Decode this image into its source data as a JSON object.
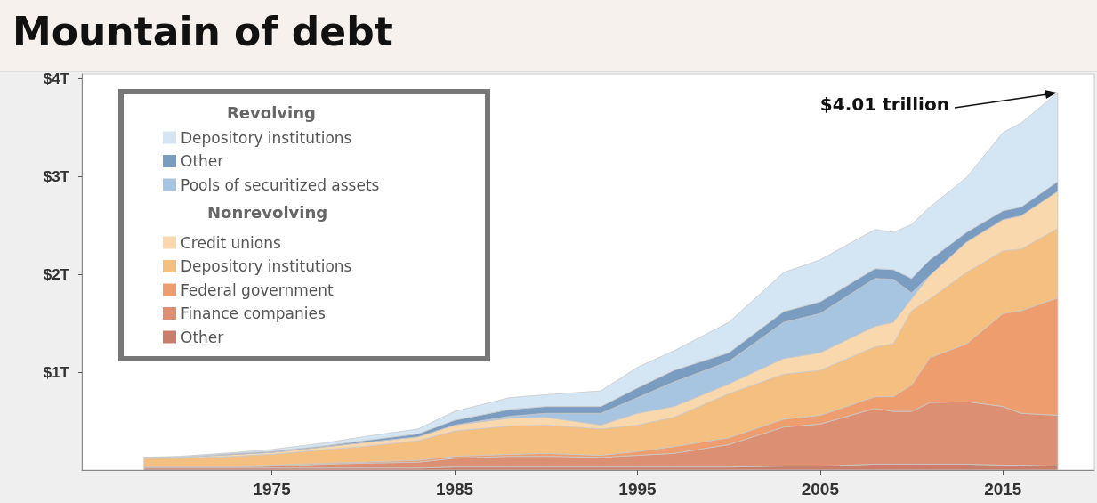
{
  "chart_data": {
    "type": "area",
    "title": "Mountain of debt",
    "legend_title": "Revolving",
    "stacked": true,
    "legend": "top left",
    "grid": false,
    "x": [
      1968,
      1970,
      1973,
      1975,
      1978,
      1980,
      1983,
      1985,
      1988,
      1990,
      1993,
      1995,
      1997,
      2000,
      2003,
      2005,
      2008,
      2009,
      2010,
      2011,
      2013,
      2015,
      2016,
      2018
    ],
    "xlim": [
      1964.6,
      2020
    ],
    "xticks": [
      1975,
      1985,
      1995,
      2005,
      2015
    ],
    "ylim": [
      0,
      4.05
    ],
    "yticks": [
      {
        "value": 1,
        "label": "$1T"
      },
      {
        "value": 2,
        "label": "$2T"
      },
      {
        "value": 3,
        "label": "$3T"
      },
      {
        "value": 4,
        "label": "$4T"
      }
    ],
    "annotations": [
      "Nonrevolving",
      "$4.01 trillion"
    ],
    "series": [
      {
        "name": "Other",
        "color": "#c97e6c",
        "values": [
          0.02,
          0.02,
          0.02,
          0.02,
          0.02,
          0.02,
          0.02,
          0.03,
          0.03,
          0.03,
          0.03,
          0.03,
          0.03,
          0.03,
          0.04,
          0.04,
          0.06,
          0.06,
          0.06,
          0.06,
          0.06,
          0.05,
          0.05,
          0.04
        ]
      },
      {
        "name": "Finance companies",
        "color": "#dc8f72",
        "values": [
          0.01,
          0.01,
          0.01,
          0.02,
          0.04,
          0.05,
          0.06,
          0.09,
          0.11,
          0.11,
          0.1,
          0.12,
          0.14,
          0.23,
          0.4,
          0.43,
          0.57,
          0.54,
          0.54,
          0.63,
          0.64,
          0.6,
          0.53,
          0.52
        ]
      },
      {
        "name": "Federal government",
        "color": "#ee9e6e",
        "values": [
          0.01,
          0.01,
          0.01,
          0.01,
          0.01,
          0.01,
          0.02,
          0.02,
          0.02,
          0.03,
          0.02,
          0.04,
          0.07,
          0.07,
          0.08,
          0.09,
          0.12,
          0.15,
          0.27,
          0.46,
          0.59,
          0.95,
          1.05,
          1.2
        ]
      },
      {
        "name": "Depository institutions",
        "color": "#f5bf7f",
        "values": [
          0.08,
          0.08,
          0.1,
          0.11,
          0.14,
          0.16,
          0.2,
          0.26,
          0.29,
          0.29,
          0.27,
          0.27,
          0.3,
          0.45,
          0.46,
          0.46,
          0.51,
          0.54,
          0.76,
          0.6,
          0.73,
          0.64,
          0.63,
          0.71
        ]
      },
      {
        "name": "Credit unions",
        "color": "#fad8ae",
        "values": [
          0.01,
          0.01,
          0.02,
          0.02,
          0.03,
          0.04,
          0.04,
          0.06,
          0.08,
          0.08,
          0.04,
          0.12,
          0.11,
          0.1,
          0.16,
          0.18,
          0.21,
          0.22,
          0.12,
          0.24,
          0.31,
          0.32,
          0.34,
          0.38
        ]
      },
      {
        "name": "Pools of securitized assets",
        "color": "#a7c4e0",
        "values": [
          0,
          0,
          0,
          0,
          0,
          0,
          0,
          0,
          0.02,
          0.04,
          0.12,
          0.16,
          0.25,
          0.23,
          0.37,
          0.4,
          0.49,
          0.44,
          0.06,
          0,
          0,
          0,
          0,
          0
        ]
      },
      {
        "name": "Other",
        "color": "#7a9cc0",
        "values": [
          0,
          0,
          0.01,
          0.01,
          0.01,
          0.02,
          0.03,
          0.05,
          0.07,
          0.07,
          0.07,
          0.1,
          0.12,
          0.09,
          0.11,
          0.12,
          0.1,
          0.1,
          0.15,
          0.16,
          0.1,
          0.09,
          0.09,
          0.1
        ]
      },
      {
        "name": "Depository institutions",
        "color": "#d4e6f4",
        "values": [
          0,
          0.01,
          0.01,
          0.02,
          0.03,
          0.04,
          0.05,
          0.09,
          0.12,
          0.12,
          0.16,
          0.21,
          0.2,
          0.31,
          0.4,
          0.43,
          0.4,
          0.38,
          0.55,
          0.54,
          0.56,
          0.8,
          0.86,
          0.91
        ]
      }
    ]
  }
}
